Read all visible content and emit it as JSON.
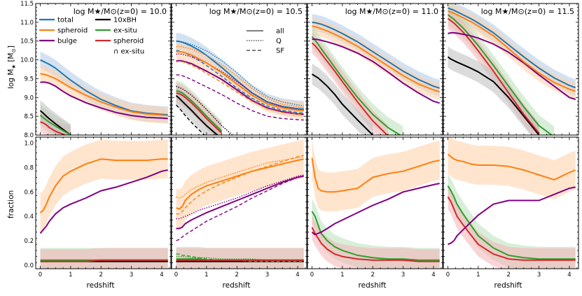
{
  "chart_data": {
    "type": "line",
    "layout": "2 rows x 4 columns, shared x axis",
    "x": [
      0,
      0.1,
      0.2,
      0.3,
      0.5,
      0.75,
      1,
      1.5,
      2,
      2.5,
      3,
      3.5,
      4,
      4.2
    ],
    "xlabel": "redshift",
    "xticks": [
      0,
      1,
      2,
      3,
      4
    ],
    "xlim": [
      -0.15,
      4.3
    ],
    "top_row": {
      "ylabel": "log M★ [M⊙]",
      "ylim": [
        8.0,
        11.5
      ],
      "yticks": [
        8.0,
        8.5,
        9.0,
        9.5,
        10.0,
        10.5,
        11.0,
        11.5
      ],
      "ytick_labels": [
        "8.0",
        "8.5",
        "9.0",
        "9.5",
        "10.0",
        "10.5",
        "11.0",
        "11.5"
      ]
    },
    "bottom_row": {
      "ylabel": "fraction",
      "ylim": [
        -0.03,
        1.05
      ],
      "yticks": [
        0.0,
        0.2,
        0.4,
        0.6,
        0.8,
        1.0
      ],
      "ytick_labels": [
        "0.0",
        "0.2",
        "0.4",
        "0.6",
        "0.8",
        "1.0"
      ]
    },
    "colors": {
      "total": "#1f77b4",
      "spheroid": "#ff7f0e",
      "bulge": "#800080",
      "10xBH": "#000000",
      "ex-situ": "#2ca02c",
      "spheroid_exsitu": "#d62728",
      "total_band": "#aecbe8",
      "spheroid_band": "#ffcfa6",
      "exsitu_band": "#b8e0b8",
      "spheroid_exsitu_band": "#f4b3b6",
      "bh_band": "#bdbdbd"
    },
    "legend_entries": [
      "total",
      "spheroid",
      "bulge",
      "10xBH",
      "ex-situ",
      "spheroid",
      "∩ ex-situ"
    ],
    "legend_styles": [
      "all",
      "Q",
      "SF"
    ],
    "panels": [
      {
        "title": "log M★/M⊙(z=0) = 10.0",
        "mass": {
          "total": [
            10.0,
            9.96,
            9.92,
            9.88,
            9.78,
            9.62,
            9.46,
            9.18,
            8.95,
            8.78,
            8.64,
            8.58,
            8.55,
            8.54
          ],
          "spheroid": [
            9.63,
            9.62,
            9.6,
            9.57,
            9.5,
            9.38,
            9.26,
            9.06,
            8.88,
            8.74,
            8.62,
            8.56,
            8.53,
            8.52
          ],
          "bulge": [
            9.4,
            9.41,
            9.4,
            9.38,
            9.3,
            9.16,
            9.04,
            8.86,
            8.72,
            8.6,
            8.52,
            8.47,
            8.45,
            8.44
          ],
          "10xBH": [
            8.65,
            8.58,
            8.5,
            8.43,
            8.3,
            8.15,
            8.0,
            null,
            null,
            null,
            null,
            null,
            null,
            null
          ],
          "ex-situ": [
            8.53,
            8.46,
            8.4,
            8.34,
            8.24,
            8.12,
            8.0,
            null,
            null,
            null,
            null,
            null,
            null,
            null
          ],
          "spheroid_exsitu": [
            8.35,
            8.32,
            8.27,
            8.2,
            8.1,
            8.02,
            7.95,
            null,
            null,
            null,
            null,
            null,
            null,
            null
          ]
        },
        "fraction": {
          "spheroid": [
            0.43,
            0.45,
            0.5,
            0.56,
            0.65,
            0.73,
            0.77,
            0.83,
            0.87,
            0.86,
            0.86,
            0.86,
            0.87,
            0.87
          ],
          "bulge": [
            0.26,
            0.29,
            0.32,
            0.36,
            0.42,
            0.47,
            0.5,
            0.55,
            0.61,
            0.64,
            0.68,
            0.72,
            0.77,
            0.78
          ],
          "ex-situ": [
            0.04,
            0.04,
            0.04,
            0.04,
            0.04,
            0.04,
            0.04,
            0.04,
            0.04,
            0.04,
            0.04,
            0.04,
            0.04,
            0.04
          ],
          "spheroid_exsitu": [
            0.03,
            0.03,
            0.03,
            0.03,
            0.03,
            0.03,
            0.03,
            0.03,
            0.04,
            0.04,
            0.04,
            0.04,
            0.04,
            0.04
          ],
          "10xBH": [
            0.03,
            0.03,
            0.03,
            0.03,
            0.03,
            0.03,
            0.03,
            0.03,
            0.03,
            0.03,
            0.03,
            0.03,
            0.03,
            0.03
          ]
        }
      },
      {
        "title": "log M★/M⊙(z=0) = 10.5",
        "mass": {
          "total_all": [
            10.5,
            10.49,
            10.47,
            10.44,
            10.37,
            10.26,
            10.12,
            9.8,
            9.45,
            9.12,
            8.88,
            8.76,
            8.7,
            8.69
          ],
          "total_Q": [
            10.5,
            10.5,
            10.48,
            10.46,
            10.41,
            10.33,
            10.24,
            9.98,
            9.66,
            9.3,
            9.02,
            8.88,
            8.8,
            8.78
          ],
          "total_SF": [
            10.25,
            10.24,
            10.21,
            10.18,
            10.1,
            9.98,
            9.85,
            9.56,
            9.25,
            8.98,
            8.77,
            8.66,
            8.6,
            8.58
          ],
          "spheroid_all": [
            10.22,
            10.22,
            10.21,
            10.19,
            10.13,
            10.03,
            9.92,
            9.66,
            9.36,
            9.06,
            8.83,
            8.72,
            8.66,
            8.65
          ],
          "spheroid_Q": [
            10.35,
            10.36,
            10.35,
            10.33,
            10.29,
            10.21,
            10.12,
            9.88,
            9.57,
            9.24,
            8.97,
            8.82,
            8.75,
            8.73
          ],
          "spheroid_SF": [
            9.95,
            9.96,
            9.95,
            9.93,
            9.86,
            9.76,
            9.64,
            9.4,
            9.14,
            8.9,
            8.7,
            8.6,
            8.55,
            8.54
          ],
          "bulge_all": [
            9.97,
            9.98,
            9.97,
            9.95,
            9.9,
            9.8,
            9.7,
            9.48,
            9.2,
            8.92,
            8.72,
            8.62,
            8.56,
            8.55
          ],
          "bulge_Q": [
            10.15,
            10.16,
            10.15,
            10.13,
            10.08,
            10.0,
            9.91,
            9.69,
            9.42,
            9.12,
            8.88,
            8.75,
            8.68,
            8.67
          ],
          "bulge_SF": [
            9.6,
            9.6,
            9.58,
            9.55,
            9.48,
            9.38,
            9.28,
            9.08,
            8.85,
            8.65,
            8.5,
            8.44,
            8.41,
            8.4
          ],
          "10xBH_all": [
            9.05,
            8.98,
            8.9,
            8.82,
            8.66,
            8.45,
            8.25,
            7.9,
            null,
            null,
            null,
            null,
            null,
            null
          ],
          "10xBH_Q": [
            9.3,
            9.27,
            9.23,
            9.18,
            9.06,
            8.88,
            8.68,
            8.25,
            7.9,
            null,
            null,
            null,
            null,
            null
          ],
          "10xBH_SF": [
            8.8,
            8.72,
            8.62,
            8.52,
            8.34,
            8.14,
            7.95,
            null,
            null,
            null,
            null,
            null,
            null,
            null
          ],
          "ex-situ_all": [
            9.18,
            9.16,
            9.12,
            9.06,
            8.92,
            8.72,
            8.5,
            8.1,
            null,
            null,
            null,
            null,
            null,
            null
          ],
          "spheroid_exsitu_all": [
            9.12,
            9.1,
            9.06,
            9.0,
            8.86,
            8.66,
            8.44,
            8.05,
            null,
            null,
            null,
            null,
            null,
            null
          ]
        },
        "fraction": {
          "spheroid_all": [
            0.47,
            0.46,
            0.48,
            0.53,
            0.58,
            0.62,
            0.65,
            0.69,
            0.73,
            0.77,
            0.8,
            0.83,
            0.86,
            0.87
          ],
          "spheroid_Q": [
            0.56,
            0.55,
            0.56,
            0.58,
            0.62,
            0.65,
            0.68,
            0.72,
            0.76,
            0.8,
            0.84,
            0.86,
            0.88,
            0.89
          ],
          "spheroid_SF": [
            0.42,
            0.42,
            0.44,
            0.47,
            0.52,
            0.57,
            0.61,
            0.67,
            0.72,
            0.77,
            0.81,
            0.85,
            0.89,
            0.9
          ],
          "bulge_all": [
            0.3,
            0.3,
            0.31,
            0.34,
            0.37,
            0.4,
            0.43,
            0.48,
            0.53,
            0.58,
            0.63,
            0.68,
            0.72,
            0.73
          ],
          "bulge_Q": [
            0.38,
            0.38,
            0.39,
            0.4,
            0.42,
            0.45,
            0.47,
            0.51,
            0.55,
            0.6,
            0.65,
            0.69,
            0.73,
            0.74
          ],
          "bulge_SF": [
            0.2,
            0.21,
            0.23,
            0.25,
            0.28,
            0.32,
            0.36,
            0.42,
            0.48,
            0.55,
            0.61,
            0.67,
            0.72,
            0.73
          ],
          "ex-situ_all": [
            0.05,
            0.05,
            0.05,
            0.05,
            0.05,
            0.05,
            0.04,
            0.04,
            0.04,
            0.04,
            0.04,
            0.04,
            0.04,
            0.04
          ],
          "ex-situ_Q": [
            0.07,
            0.07,
            0.07,
            0.07,
            0.06,
            0.06,
            0.06,
            0.05,
            0.05,
            0.05,
            0.04,
            0.04,
            0.04,
            0.04
          ],
          "ex-situ_SF": [
            0.09,
            0.09,
            0.08,
            0.08,
            0.07,
            0.06,
            0.05,
            0.04,
            0.04,
            0.03,
            0.03,
            0.03,
            0.03,
            0.03
          ],
          "spheroid_exsitu_all": [
            0.04,
            0.04,
            0.04,
            0.04,
            0.04,
            0.04,
            0.04,
            0.04,
            0.04,
            0.04,
            0.04,
            0.04,
            0.04,
            0.04
          ],
          "10xBH_all": [
            0.03,
            0.03,
            0.03,
            0.03,
            0.03,
            0.03,
            0.03,
            0.03,
            0.03,
            0.03,
            0.03,
            0.03,
            0.03,
            0.03
          ]
        }
      },
      {
        "title": "log M★/M⊙(z=0) = 11.0",
        "mass": {
          "total": [
            11.0,
            10.99,
            10.97,
            10.95,
            10.89,
            10.8,
            10.7,
            10.48,
            10.22,
            9.96,
            9.7,
            9.48,
            9.3,
            9.25
          ],
          "spheroid": [
            10.9,
            10.88,
            10.86,
            10.83,
            10.77,
            10.68,
            10.58,
            10.36,
            10.1,
            9.84,
            9.58,
            9.36,
            9.2,
            9.15
          ],
          "bulge": [
            10.55,
            10.55,
            10.54,
            10.52,
            10.48,
            10.42,
            10.35,
            10.18,
            9.96,
            9.68,
            9.38,
            9.12,
            8.9,
            8.85
          ],
          "10xBH": [
            9.62,
            9.57,
            9.52,
            9.45,
            9.3,
            9.08,
            8.82,
            8.4,
            8.0,
            null,
            null,
            null,
            null,
            null
          ],
          "ex-situ": [
            10.62,
            10.52,
            10.42,
            10.3,
            10.08,
            9.8,
            9.52,
            9.0,
            8.55,
            8.2,
            7.95,
            null,
            null,
            null
          ],
          "spheroid_exsitu": [
            10.45,
            10.38,
            10.28,
            10.17,
            9.96,
            9.7,
            9.42,
            8.88,
            8.38,
            7.98,
            null,
            null,
            null,
            null
          ]
        },
        "fraction": {
          "spheroid": [
            0.88,
            0.72,
            0.63,
            0.61,
            0.6,
            0.6,
            0.61,
            0.63,
            0.72,
            0.75,
            0.77,
            0.81,
            0.85,
            0.86
          ],
          "bulge": [
            0.27,
            0.25,
            0.26,
            0.27,
            0.3,
            0.34,
            0.37,
            0.43,
            0.49,
            0.54,
            0.6,
            0.63,
            0.66,
            0.67
          ],
          "ex-situ": [
            0.44,
            0.4,
            0.33,
            0.26,
            0.2,
            0.15,
            0.12,
            0.08,
            0.06,
            0.05,
            0.05,
            0.04,
            0.04,
            0.04
          ],
          "spheroid_exsitu": [
            0.31,
            0.26,
            0.22,
            0.18,
            0.13,
            0.09,
            0.07,
            0.05,
            0.04,
            0.04,
            0.04,
            0.03,
            0.03,
            0.03
          ]
        }
      },
      {
        "title": "log M★/M⊙(z=0) = 11.5",
        "mass": {
          "total": [
            11.38,
            11.35,
            11.32,
            11.28,
            11.2,
            11.1,
            10.98,
            10.72,
            10.4,
            10.08,
            9.78,
            9.52,
            9.32,
            9.26
          ],
          "spheroid": [
            11.3,
            11.27,
            11.24,
            11.2,
            11.12,
            11.02,
            10.9,
            10.64,
            10.3,
            9.95,
            9.65,
            9.4,
            9.22,
            9.17
          ],
          "bulge": [
            10.7,
            10.72,
            10.72,
            10.71,
            10.68,
            10.64,
            10.58,
            10.42,
            10.2,
            9.92,
            9.6,
            9.3,
            9.0,
            8.95
          ],
          "10xBH": [
            10.08,
            10.02,
            9.98,
            9.94,
            9.87,
            9.78,
            9.68,
            9.42,
            9.0,
            8.5,
            8.0,
            null,
            null,
            null
          ],
          "ex-situ": [
            11.2,
            11.14,
            11.08,
            11.0,
            10.85,
            10.62,
            10.38,
            9.85,
            9.3,
            8.75,
            8.25,
            7.95,
            null,
            null
          ],
          "spheroid_exsitu": [
            11.1,
            11.04,
            10.98,
            10.9,
            10.74,
            10.5,
            10.24,
            9.7,
            9.12,
            8.55,
            8.05,
            null,
            null,
            null
          ]
        },
        "fraction": {
          "spheroid": [
            0.91,
            0.89,
            0.87,
            0.86,
            0.85,
            0.83,
            0.82,
            0.82,
            0.81,
            0.78,
            0.74,
            0.7,
            0.76,
            0.78
          ],
          "bulge": [
            0.17,
            0.18,
            0.2,
            0.24,
            0.29,
            0.35,
            0.41,
            0.5,
            0.53,
            0.53,
            0.53,
            0.58,
            0.63,
            0.64
          ],
          "ex-situ": [
            0.65,
            0.61,
            0.56,
            0.5,
            0.42,
            0.33,
            0.24,
            0.14,
            0.08,
            0.06,
            0.05,
            0.05,
            0.05,
            0.05
          ],
          "spheroid_exsitu": [
            0.56,
            0.52,
            0.46,
            0.4,
            0.33,
            0.25,
            0.17,
            0.09,
            0.05,
            0.04,
            0.04,
            0.04,
            0.04,
            0.04
          ]
        }
      }
    ]
  }
}
